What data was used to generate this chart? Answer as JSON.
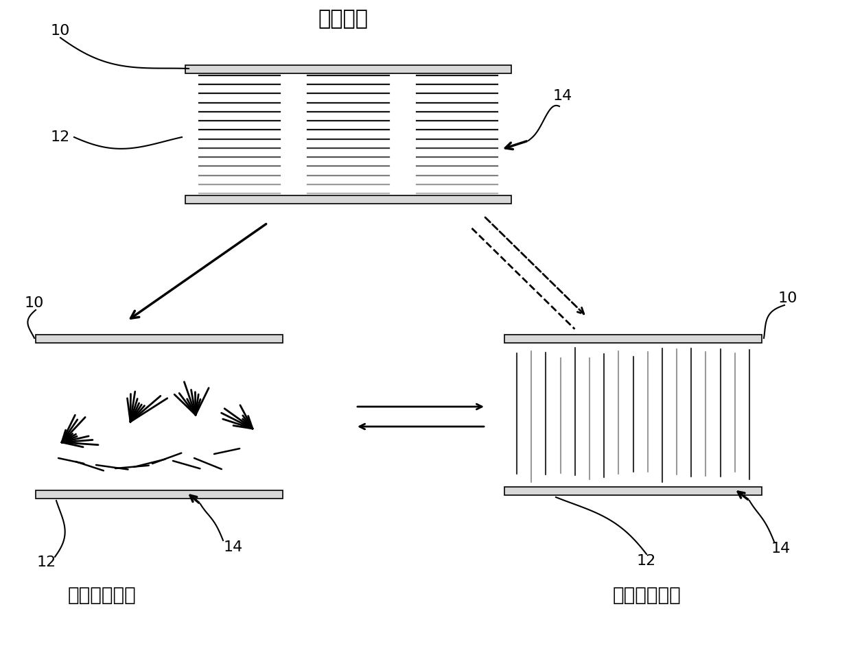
{
  "title_planar": "平面状态",
  "title_focal": "焦锥织构状态",
  "title_vertical": "垂直织构状态",
  "label_10": "10",
  "label_12": "12",
  "label_14": "14",
  "bg_color": "#ffffff",
  "line_color": "#000000",
  "plate_fill": "#d8d8d8",
  "plate_edge": "#000000"
}
